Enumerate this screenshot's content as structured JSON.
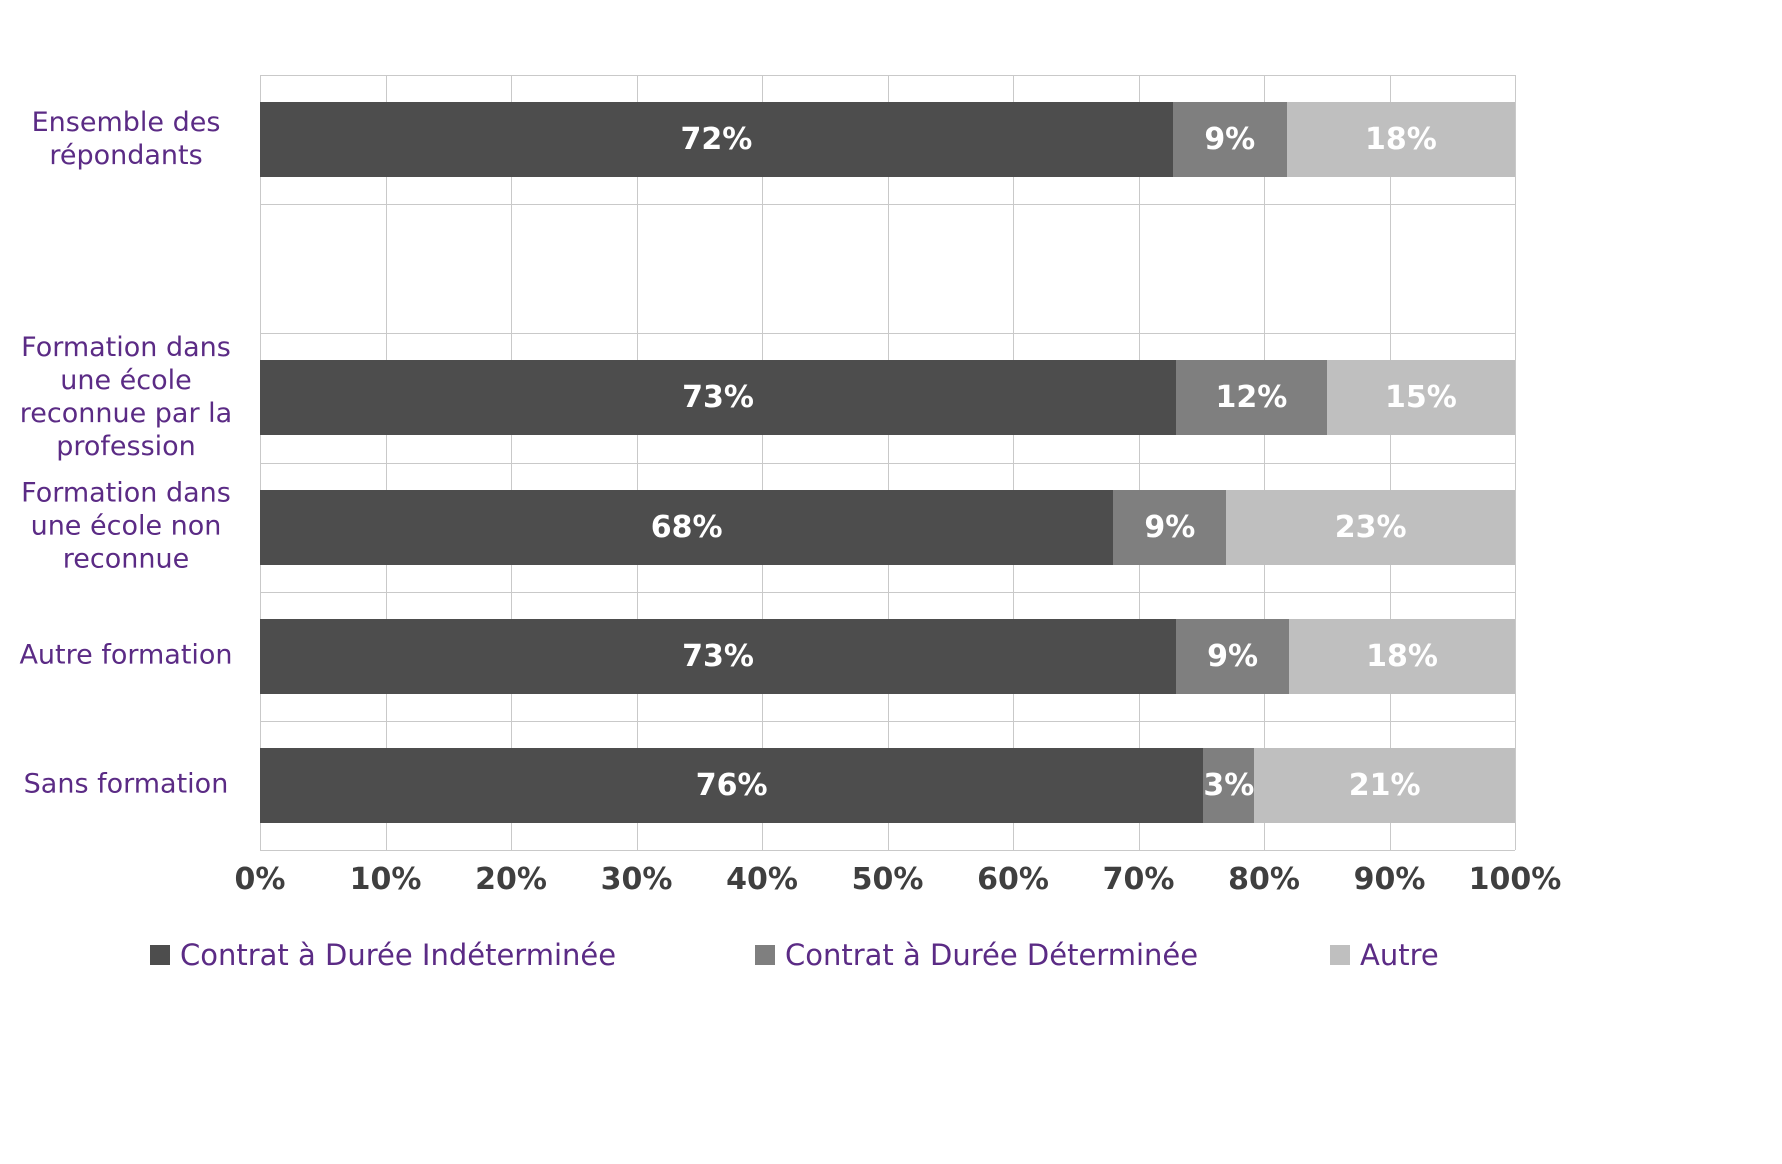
{
  "chart_data": {
    "type": "bar",
    "orientation": "horizontal",
    "stacked": true,
    "title": "",
    "xlabel": "",
    "ylabel": "",
    "xlim": [
      0,
      100
    ],
    "grid": "both",
    "legend_position": "bottom",
    "value_suffix": "%",
    "categories": [
      "Ensemble des répondants",
      "Formation dans une école reconnue par la profession",
      "Formation dans une école non reconnue",
      "Autre formation",
      "Sans formation"
    ],
    "series": [
      {
        "name": "Contrat à Durée Indéterminée",
        "color": "#4d4d4d",
        "values": [
          72,
          73,
          68,
          73,
          76
        ]
      },
      {
        "name": "Contrat à Durée Déterminée",
        "color": "#7f7f7f",
        "values": [
          9,
          12,
          9,
          9,
          3
        ]
      },
      {
        "name": "Autre",
        "color": "#bfbfbf",
        "values": [
          18,
          15,
          23,
          18,
          21
        ]
      }
    ],
    "x_ticks": [
      "0%",
      "10%",
      "20%",
      "30%",
      "40%",
      "50%",
      "60%",
      "70%",
      "80%",
      "90%",
      "100%"
    ],
    "bar_labels": [
      [
        "72%",
        "9%",
        "18%"
      ],
      [
        "73%",
        "12%",
        "15%"
      ],
      [
        "68%",
        "9%",
        "23%"
      ],
      [
        "73%",
        "9%",
        "18%"
      ],
      [
        "76%",
        "3%",
        "21%"
      ]
    ]
  },
  "colors": {
    "category_label": "#5b2b85",
    "tick_label": "#3f3f3f",
    "grid": "#c9c9c9",
    "bar_value_text": "#ffffff"
  }
}
